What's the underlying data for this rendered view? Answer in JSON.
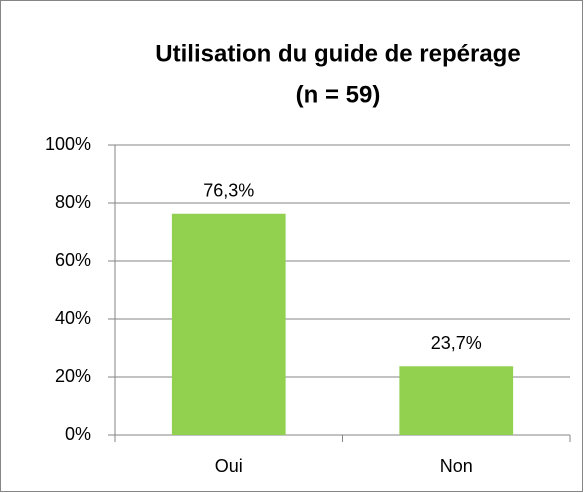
{
  "chart_data": {
    "type": "bar",
    "title": "Utilisation du guide de repérage",
    "subtitle": "(n = 59)",
    "categories": [
      "Oui",
      "Non"
    ],
    "values": [
      76.3,
      23.7
    ],
    "value_labels": [
      "76,3%",
      "23,7%"
    ],
    "color": "#92d050",
    "ylim": [
      0,
      100
    ],
    "yticks": [
      {
        "value": 0,
        "label": "0%"
      },
      {
        "value": 20,
        "label": "20%"
      },
      {
        "value": 40,
        "label": "40%"
      },
      {
        "value": 60,
        "label": "60%"
      },
      {
        "value": 80,
        "label": "80%"
      },
      {
        "value": 100,
        "label": "100%"
      }
    ],
    "grid": true
  }
}
